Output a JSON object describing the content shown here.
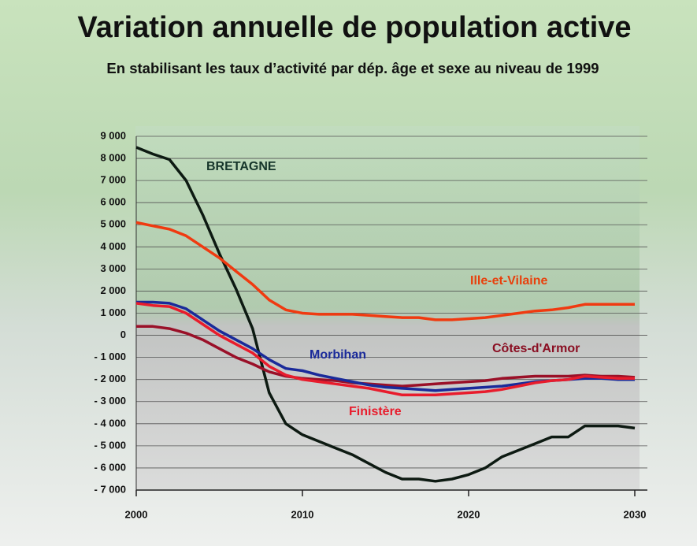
{
  "chart_data": {
    "type": "line",
    "title": "Variation annuelle de population active",
    "subtitle": "En stabilisant les taux d’activité par dép. âge et sexe au niveau de 1999",
    "x": [
      2000,
      2001,
      2002,
      2003,
      2004,
      2005,
      2006,
      2007,
      2008,
      2009,
      2010,
      2011,
      2012,
      2013,
      2014,
      2015,
      2016,
      2017,
      2018,
      2019,
      2020,
      2021,
      2022,
      2023,
      2024,
      2025,
      2026,
      2027,
      2028,
      2029,
      2030
    ],
    "series": [
      {
        "name": "BRETAGNE",
        "color": "#0d1a12",
        "values": [
          8500,
          8200,
          7950,
          7000,
          5450,
          3700,
          2100,
          300,
          -2600,
          -4000,
          -4500,
          -4800,
          -5100,
          -5400,
          -5800,
          -6200,
          -6500,
          -6500,
          -6600,
          -6500,
          -6300,
          -6000,
          -5500,
          -5200,
          -4900,
          -4600,
          -4600,
          -4100,
          -4100,
          -4100,
          -4200
        ]
      },
      {
        "name": "Ille-et-Vilaine",
        "color": "#f03a10",
        "values": [
          5100,
          4950,
          4800,
          4500,
          4000,
          3500,
          2900,
          2300,
          1600,
          1150,
          1000,
          950,
          950,
          950,
          900,
          850,
          800,
          800,
          700,
          700,
          750,
          800,
          900,
          1000,
          1100,
          1150,
          1250,
          1400,
          1400,
          1400,
          1400
        ]
      },
      {
        "name": "Côtes-d'Armor",
        "color": "#9a1028",
        "values": [
          400,
          400,
          300,
          100,
          -200,
          -600,
          -1000,
          -1300,
          -1650,
          -1850,
          -1950,
          -2000,
          -2050,
          -2150,
          -2200,
          -2250,
          -2300,
          -2250,
          -2200,
          -2150,
          -2100,
          -2050,
          -1950,
          -1900,
          -1850,
          -1850,
          -1850,
          -1800,
          -1850,
          -1850,
          -1900
        ]
      },
      {
        "name": "Morbihan",
        "color": "#1a2a9a",
        "values": [
          1500,
          1500,
          1450,
          1200,
          700,
          200,
          -200,
          -600,
          -1100,
          -1500,
          -1600,
          -1800,
          -1950,
          -2100,
          -2250,
          -2350,
          -2400,
          -2450,
          -2500,
          -2450,
          -2400,
          -2350,
          -2300,
          -2200,
          -2100,
          -2050,
          -2000,
          -1950,
          -1950,
          -2000,
          -2000
        ]
      },
      {
        "name": "Finistère",
        "color": "#e81c2c",
        "values": [
          1450,
          1350,
          1300,
          1000,
          500,
          0,
          -400,
          -800,
          -1400,
          -1800,
          -2000,
          -2100,
          -2200,
          -2300,
          -2400,
          -2550,
          -2700,
          -2700,
          -2700,
          -2650,
          -2600,
          -2550,
          -2450,
          -2300,
          -2150,
          -2050,
          -2000,
          -1850,
          -1900,
          -1950,
          -1950
        ]
      }
    ],
    "xlim": [
      2000,
      2030
    ],
    "xticks": [
      2000,
      2010,
      2020,
      2030
    ],
    "ylim": [
      -7000,
      9000
    ],
    "yticks": [
      {
        "value": 9000,
        "label": "9 000"
      },
      {
        "value": 8000,
        "label": "8 000"
      },
      {
        "value": 7000,
        "label": "7 000"
      },
      {
        "value": 6000,
        "label": "6 000"
      },
      {
        "value": 5000,
        "label": "5 000"
      },
      {
        "value": 4000,
        "label": "4 000"
      },
      {
        "value": 3000,
        "label": "3 000"
      },
      {
        "value": 2000,
        "label": "2 000"
      },
      {
        "value": 1000,
        "label": "1 000"
      },
      0,
      {
        "value": -1000,
        "label": "- 1 000"
      },
      {
        "value": -2000,
        "label": "- 2 000"
      },
      {
        "value": -3000,
        "label": "- 3 000"
      },
      {
        "value": -4000,
        "label": "- 4 000"
      },
      {
        "value": -5000,
        "label": "- 5 000"
      },
      {
        "value": -6000,
        "label": "- 6 000"
      },
      {
        "value": -7000,
        "label": "- 7 000"
      }
    ],
    "grid": true
  }
}
